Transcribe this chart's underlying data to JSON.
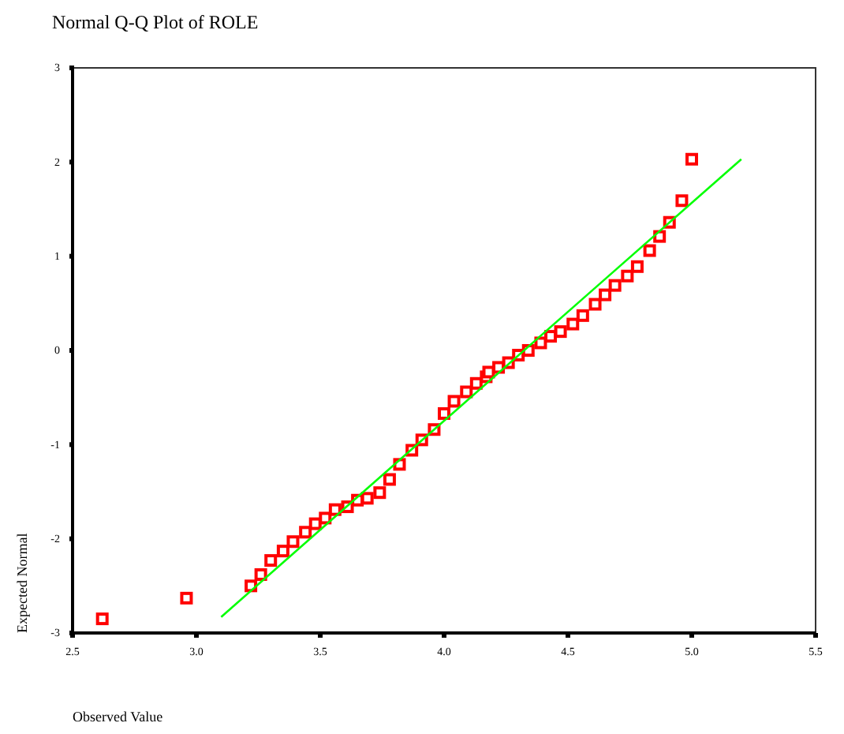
{
  "chart_data": {
    "type": "scatter",
    "title": "Normal Q-Q Plot of ROLE",
    "xlabel": "Observed Value",
    "ylabel": "Expected Normal",
    "grid": false,
    "xlim": [
      2.5,
      5.5
    ],
    "xticks": [
      {
        "value": 2.5,
        "label": "2.5"
      },
      {
        "value": 3,
        "label": "3.0"
      },
      {
        "value": 3.5,
        "label": "3.5"
      },
      {
        "value": 4,
        "label": "4.0"
      },
      {
        "value": 4.5,
        "label": "4.5"
      },
      {
        "value": 5,
        "label": "5.0"
      },
      {
        "value": 5.5,
        "label": "5.5"
      }
    ],
    "ylim": [
      -3,
      3
    ],
    "yticks": [
      -3,
      -2,
      -1,
      0,
      1,
      2,
      3
    ],
    "series": [
      {
        "marker": "square",
        "color": "#ff0000",
        "x": [
          2.62,
          2.96,
          3.22,
          3.26,
          3.3,
          3.35,
          3.39,
          3.44,
          3.48,
          3.52,
          3.56,
          3.61,
          3.65,
          3.69,
          3.74,
          3.78,
          3.82,
          3.87,
          3.91,
          3.96,
          4.0,
          4.04,
          4.09,
          4.13,
          4.17,
          4.18,
          4.22,
          4.26,
          4.3,
          4.34,
          4.39,
          4.43,
          4.47,
          4.52,
          4.56,
          4.61,
          4.65,
          4.69,
          4.74,
          4.78,
          4.83,
          4.87,
          4.91,
          4.96,
          5.0
        ],
        "values": [
          -2.85,
          -2.63,
          -2.5,
          -2.38,
          -2.23,
          -2.13,
          -2.03,
          -1.93,
          -1.84,
          -1.78,
          -1.69,
          -1.66,
          -1.59,
          -1.57,
          -1.51,
          -1.37,
          -1.21,
          -1.06,
          -0.95,
          -0.84,
          -0.67,
          -0.54,
          -0.44,
          -0.35,
          -0.28,
          -0.23,
          -0.18,
          -0.13,
          -0.05,
          0.0,
          0.08,
          0.15,
          0.2,
          0.28,
          0.37,
          0.49,
          0.59,
          0.69,
          0.79,
          0.89,
          1.06,
          1.21,
          1.36,
          1.59,
          2.03
        ]
      },
      {
        "type": "line",
        "color": "#00ff00",
        "x": [
          3.1,
          5.2
        ],
        "values": [
          -2.83,
          2.03
        ]
      }
    ]
  }
}
